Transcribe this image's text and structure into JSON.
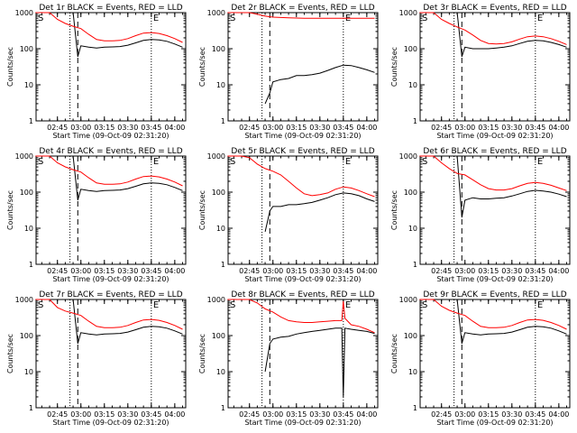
{
  "chart_data": [
    {
      "type": "line",
      "title": "Det 1r BLACK = Events, RED = LLD",
      "xlabel": "Start Time (09-Oct-09 02:31:20)",
      "ylabel": "Counts/sec",
      "yscale": "log",
      "ylim": [
        1,
        1000
      ],
      "x_ticks": [
        "02:45",
        "03:00",
        "03:15",
        "03:30",
        "03:45",
        "04:00"
      ],
      "y_ticks": [
        "1",
        "10",
        "100",
        "1000"
      ],
      "markers": [
        "S",
        "E"
      ],
      "colors": {
        "events": "#000000",
        "lld": "#ff0000"
      },
      "grid": false,
      "series": [
        {
          "name": "BLACK = Events",
          "x": [
            "02:31",
            "02:55",
            "02:58",
            "03:00",
            "03:05",
            "03:10",
            "03:15",
            "03:20",
            "03:25",
            "03:30",
            "03:35",
            "03:40",
            "03:45",
            "03:50",
            "03:55",
            "04:00",
            "04:05"
          ],
          "values": [
            1000,
            1000,
            60,
            120,
            110,
            105,
            110,
            112,
            115,
            125,
            145,
            170,
            180,
            175,
            160,
            135,
            110
          ]
        },
        {
          "name": "RED = LLD",
          "x": [
            "02:31",
            "02:40",
            "02:45",
            "02:50",
            "02:55",
            "03:00",
            "03:05",
            "03:10",
            "03:15",
            "03:20",
            "03:25",
            "03:30",
            "03:35",
            "03:40",
            "03:45",
            "03:50",
            "03:55",
            "04:00",
            "04:05"
          ],
          "values": [
            1000,
            1000,
            650,
            500,
            420,
            360,
            250,
            180,
            165,
            165,
            170,
            190,
            230,
            270,
            280,
            265,
            230,
            190,
            150
          ]
        }
      ]
    },
    {
      "type": "line",
      "title": "Det 2r BLACK = Events, RED = LLD",
      "xlabel": "Start Time (09-Oct-09 02:31:20)",
      "ylabel": "Counts/sec",
      "yscale": "log",
      "ylim": [
        1,
        1000
      ],
      "x_ticks": [
        "02:45",
        "03:00",
        "03:15",
        "03:30",
        "03:45",
        "04:00"
      ],
      "y_ticks": [
        "1",
        "10",
        "100",
        "1000"
      ],
      "markers": [
        "S",
        "E"
      ],
      "colors": {
        "events": "#000000",
        "lld": "#ff0000"
      },
      "grid": false,
      "series": [
        {
          "name": "BLACK = Events",
          "x": [
            "02:55",
            "02:58",
            "03:00",
            "03:05",
            "03:10",
            "03:15",
            "03:20",
            "03:25",
            "03:30",
            "03:35",
            "03:40",
            "03:45",
            "03:50",
            "03:55",
            "04:00",
            "04:05"
          ],
          "values": [
            3,
            6,
            12,
            14,
            15,
            18,
            18,
            19,
            21,
            25,
            30,
            35,
            34,
            30,
            26,
            22
          ]
        },
        {
          "name": "RED = LLD",
          "x": [
            "02:31",
            "02:40",
            "02:45",
            "02:50",
            "02:55",
            "03:00",
            "03:10",
            "03:20",
            "03:30",
            "03:40",
            "03:50",
            "04:00",
            "04:05"
          ],
          "values": [
            1000,
            1000,
            1000,
            900,
            800,
            750,
            720,
            700,
            700,
            700,
            700,
            700,
            700
          ]
        }
      ]
    },
    {
      "type": "line",
      "title": "Det 3r BLACK = Events, RED = LLD",
      "xlabel": "Start Time (09-Oct-09 02:31:20)",
      "ylabel": "Counts/sec",
      "yscale": "log",
      "ylim": [
        1,
        1000
      ],
      "x_ticks": [
        "02:45",
        "03:00",
        "03:15",
        "03:30",
        "03:45",
        "04:00"
      ],
      "y_ticks": [
        "1",
        "10",
        "100",
        "1000"
      ],
      "markers": [
        "S",
        "E"
      ],
      "colors": {
        "events": "#000000",
        "lld": "#ff0000"
      },
      "grid": false,
      "series": [
        {
          "name": "BLACK = Events",
          "x": [
            "02:31",
            "02:55",
            "02:58",
            "03:00",
            "03:05",
            "03:10",
            "03:15",
            "03:20",
            "03:25",
            "03:30",
            "03:35",
            "03:40",
            "03:45",
            "03:50",
            "03:55",
            "04:00",
            "04:05"
          ],
          "values": [
            1000,
            1000,
            60,
            110,
            100,
            100,
            100,
            105,
            110,
            120,
            140,
            160,
            170,
            165,
            150,
            130,
            110
          ]
        },
        {
          "name": "RED = LLD",
          "x": [
            "02:31",
            "02:40",
            "02:45",
            "02:50",
            "02:55",
            "03:00",
            "03:05",
            "03:10",
            "03:15",
            "03:20",
            "03:25",
            "03:30",
            "03:35",
            "03:40",
            "03:45",
            "03:50",
            "03:55",
            "04:00",
            "04:05"
          ],
          "values": [
            1000,
            1000,
            650,
            500,
            400,
            330,
            240,
            170,
            140,
            135,
            140,
            155,
            185,
            215,
            225,
            215,
            190,
            160,
            130
          ]
        }
      ]
    },
    {
      "type": "line",
      "title": "Det 4r BLACK = Events, RED = LLD",
      "xlabel": "Start Time (09-Oct-09 02:31:20)",
      "ylabel": "Counts/sec",
      "yscale": "log",
      "ylim": [
        1,
        1000
      ],
      "x_ticks": [
        "02:45",
        "03:00",
        "03:15",
        "03:30",
        "03:45",
        "04:00"
      ],
      "y_ticks": [
        "1",
        "10",
        "100",
        "1000"
      ],
      "markers": [
        "S",
        "E"
      ],
      "colors": {
        "events": "#000000",
        "lld": "#ff0000"
      },
      "grid": false,
      "series": [
        {
          "name": "BLACK = Events",
          "x": [
            "02:31",
            "02:55",
            "02:58",
            "03:00",
            "03:05",
            "03:10",
            "03:15",
            "03:20",
            "03:25",
            "03:30",
            "03:35",
            "03:40",
            "03:45",
            "03:50",
            "03:55",
            "04:00",
            "04:05"
          ],
          "values": [
            1000,
            1000,
            60,
            120,
            110,
            105,
            110,
            112,
            115,
            125,
            145,
            170,
            180,
            175,
            160,
            135,
            110
          ]
        },
        {
          "name": "RED = LLD",
          "x": [
            "02:31",
            "02:40",
            "02:45",
            "02:50",
            "02:55",
            "03:00",
            "03:05",
            "03:10",
            "03:15",
            "03:20",
            "03:25",
            "03:30",
            "03:35",
            "03:40",
            "03:45",
            "03:50",
            "03:55",
            "04:00",
            "04:05"
          ],
          "values": [
            1000,
            1000,
            650,
            500,
            420,
            360,
            250,
            180,
            165,
            165,
            170,
            190,
            230,
            270,
            280,
            265,
            230,
            190,
            150
          ]
        }
      ]
    },
    {
      "type": "line",
      "title": "Det 5r BLACK = Events, RED = LLD",
      "xlabel": "Start Time (09-Oct-09 02:31:20)",
      "ylabel": "Counts/sec",
      "yscale": "log",
      "ylim": [
        1,
        1000
      ],
      "x_ticks": [
        "02:45",
        "03:00",
        "03:15",
        "03:30",
        "03:45",
        "04:00"
      ],
      "y_ticks": [
        "1",
        "10",
        "100",
        "1000"
      ],
      "markers": [
        "S",
        "E"
      ],
      "colors": {
        "events": "#000000",
        "lld": "#ff0000"
      },
      "grid": false,
      "series": [
        {
          "name": "BLACK = Events",
          "x": [
            "02:55",
            "02:58",
            "03:00",
            "03:05",
            "03:10",
            "03:15",
            "03:20",
            "03:25",
            "03:30",
            "03:35",
            "03:40",
            "03:45",
            "03:50",
            "03:55",
            "04:00",
            "04:05"
          ],
          "values": [
            8,
            30,
            40,
            40,
            45,
            45,
            48,
            52,
            60,
            70,
            85,
            95,
            90,
            80,
            65,
            55
          ]
        },
        {
          "name": "RED = LLD",
          "x": [
            "02:31",
            "02:40",
            "02:45",
            "02:50",
            "02:55",
            "03:00",
            "03:05",
            "03:10",
            "03:15",
            "03:20",
            "03:25",
            "03:30",
            "03:35",
            "03:40",
            "03:45",
            "03:50",
            "03:55",
            "04:00",
            "04:05"
          ],
          "values": [
            1000,
            1000,
            900,
            600,
            450,
            380,
            300,
            200,
            130,
            90,
            80,
            85,
            95,
            120,
            140,
            130,
            110,
            90,
            75
          ]
        }
      ]
    },
    {
      "type": "line",
      "title": "Det 6r BLACK = Events, RED = LLD",
      "xlabel": "Start Time (09-Oct-09 02:31:20)",
      "ylabel": "Counts/sec",
      "yscale": "log",
      "ylim": [
        1,
        1000
      ],
      "x_ticks": [
        "02:45",
        "03:00",
        "03:15",
        "03:30",
        "03:45",
        "04:00"
      ],
      "y_ticks": [
        "1",
        "10",
        "100",
        "1000"
      ],
      "markers": [
        "S",
        "E"
      ],
      "colors": {
        "events": "#000000",
        "lld": "#ff0000"
      },
      "grid": false,
      "series": [
        {
          "name": "BLACK = Events",
          "x": [
            "02:31",
            "02:55",
            "02:58",
            "03:00",
            "03:05",
            "03:10",
            "03:15",
            "03:20",
            "03:25",
            "03:30",
            "03:35",
            "03:40",
            "03:45",
            "03:50",
            "03:55",
            "04:00",
            "04:05"
          ],
          "values": [
            1000,
            1000,
            20,
            60,
            70,
            65,
            65,
            68,
            70,
            78,
            90,
            105,
            112,
            108,
            100,
            88,
            75
          ]
        },
        {
          "name": "RED = LLD",
          "x": [
            "02:31",
            "02:40",
            "02:45",
            "02:50",
            "02:55",
            "03:00",
            "03:05",
            "03:10",
            "03:15",
            "03:20",
            "03:25",
            "03:30",
            "03:35",
            "03:40",
            "03:45",
            "03:50",
            "03:55",
            "04:00",
            "04:05"
          ],
          "values": [
            1000,
            1000,
            650,
            450,
            330,
            300,
            220,
            160,
            125,
            115,
            115,
            125,
            150,
            175,
            185,
            175,
            155,
            130,
            110
          ]
        }
      ]
    },
    {
      "type": "line",
      "title": "Det 7r BLACK = Events, RED = LLD",
      "xlabel": "Start Time (09-Oct-09 02:31:20)",
      "ylabel": "Counts/sec",
      "yscale": "log",
      "ylim": [
        1,
        1000
      ],
      "x_ticks": [
        "02:45",
        "03:00",
        "03:15",
        "03:30",
        "03:45",
        "04:00"
      ],
      "y_ticks": [
        "1",
        "10",
        "100",
        "1000"
      ],
      "markers": [
        "S",
        "E"
      ],
      "colors": {
        "events": "#000000",
        "lld": "#ff0000"
      },
      "grid": false,
      "series": [
        {
          "name": "BLACK = Events",
          "x": [
            "02:31",
            "02:55",
            "02:58",
            "03:00",
            "03:05",
            "03:10",
            "03:15",
            "03:20",
            "03:25",
            "03:30",
            "03:35",
            "03:40",
            "03:45",
            "03:50",
            "03:55",
            "04:00",
            "04:05"
          ],
          "values": [
            1000,
            1000,
            60,
            120,
            110,
            105,
            110,
            112,
            115,
            125,
            145,
            170,
            180,
            175,
            160,
            135,
            110
          ]
        },
        {
          "name": "RED = LLD",
          "x": [
            "02:31",
            "02:40",
            "02:45",
            "02:50",
            "02:55",
            "03:00",
            "03:05",
            "03:10",
            "03:15",
            "03:20",
            "03:25",
            "03:30",
            "03:35",
            "03:40",
            "03:45",
            "03:50",
            "03:55",
            "04:00",
            "04:05"
          ],
          "values": [
            1000,
            1000,
            600,
            480,
            420,
            360,
            250,
            180,
            165,
            165,
            170,
            190,
            230,
            270,
            280,
            265,
            230,
            190,
            150
          ]
        }
      ]
    },
    {
      "type": "line",
      "title": "Det 8r BLACK = Events, RED = LLD",
      "xlabel": "Start Time (09-Oct-09 02:31:20)",
      "ylabel": "Counts/sec",
      "yscale": "log",
      "ylim": [
        1,
        1000
      ],
      "x_ticks": [
        "02:45",
        "03:00",
        "03:15",
        "03:30",
        "03:45",
        "04:00"
      ],
      "y_ticks": [
        "1",
        "10",
        "100",
        "1000"
      ],
      "markers": [
        "S",
        "E"
      ],
      "colors": {
        "events": "#000000",
        "lld": "#ff0000"
      },
      "grid": false,
      "series": [
        {
          "name": "BLACK = Events",
          "x": [
            "02:55",
            "02:58",
            "03:00",
            "03:05",
            "03:10",
            "03:15",
            "03:20",
            "03:25",
            "03:30",
            "03:35",
            "03:40",
            "03:44",
            "03:45",
            "03:46",
            "03:50",
            "03:55",
            "04:00",
            "04:05"
          ],
          "values": [
            10,
            60,
            80,
            90,
            95,
            110,
            120,
            130,
            140,
            150,
            160,
            160,
            2,
            160,
            150,
            140,
            130,
            115
          ]
        },
        {
          "name": "RED = LLD",
          "x": [
            "02:31",
            "02:40",
            "02:45",
            "02:50",
            "02:55",
            "03:00",
            "03:05",
            "03:10",
            "03:15",
            "03:20",
            "03:25",
            "03:30",
            "03:35",
            "03:40",
            "03:44",
            "03:45",
            "03:46",
            "03:50",
            "03:55",
            "04:00",
            "04:05"
          ],
          "values": [
            1000,
            1000,
            1000,
            800,
            550,
            450,
            330,
            260,
            240,
            230,
            230,
            240,
            250,
            260,
            260,
            900,
            300,
            200,
            180,
            150,
            120
          ]
        }
      ]
    },
    {
      "type": "line",
      "title": "Det 9r BLACK = Events, RED = LLD",
      "xlabel": "Start Time (09-Oct-09 02:31:20)",
      "ylabel": "Counts/sec",
      "yscale": "log",
      "ylim": [
        1,
        1000
      ],
      "x_ticks": [
        "02:45",
        "03:00",
        "03:15",
        "03:30",
        "03:45",
        "04:00"
      ],
      "y_ticks": [
        "1",
        "10",
        "100",
        "1000"
      ],
      "markers": [
        "S",
        "E"
      ],
      "colors": {
        "events": "#000000",
        "lld": "#ff0000"
      },
      "grid": false,
      "series": [
        {
          "name": "BLACK = Events",
          "x": [
            "02:31",
            "02:55",
            "02:58",
            "03:00",
            "03:05",
            "03:10",
            "03:15",
            "03:20",
            "03:25",
            "03:30",
            "03:35",
            "03:40",
            "03:45",
            "03:50",
            "03:55",
            "04:00",
            "04:05"
          ],
          "values": [
            1000,
            1000,
            60,
            120,
            110,
            105,
            110,
            112,
            115,
            125,
            145,
            170,
            180,
            175,
            160,
            135,
            110
          ]
        },
        {
          "name": "RED = LLD",
          "x": [
            "02:31",
            "02:40",
            "02:45",
            "02:50",
            "02:55",
            "03:00",
            "03:05",
            "03:10",
            "03:15",
            "03:20",
            "03:25",
            "03:30",
            "03:35",
            "03:40",
            "03:45",
            "03:50",
            "03:55",
            "04:00",
            "04:05"
          ],
          "values": [
            1000,
            1000,
            650,
            500,
            420,
            360,
            250,
            180,
            165,
            165,
            170,
            190,
            230,
            270,
            280,
            265,
            230,
            190,
            150
          ]
        }
      ]
    }
  ]
}
